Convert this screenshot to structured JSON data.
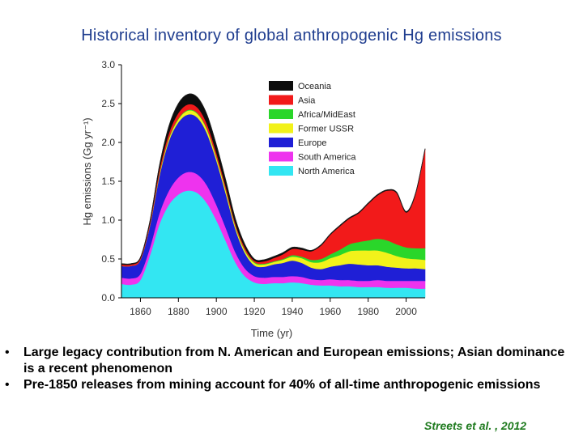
{
  "slide": {
    "title": "Historical inventory of global anthropogenic Hg emissions",
    "bullets": [
      " Large legacy contribution from N. American and European emissions; Asian dominance is a recent phenomenon",
      "Pre-1850 releases from mining account for 40% of all-time anthropogenic emissions"
    ],
    "bullet_symbol": "•",
    "citation": "Streets et al. , 2012"
  },
  "chart_data": {
    "type": "area",
    "stacked": true,
    "title": "",
    "xlabel": "Time (yr)",
    "ylabel": "Hg emissions (Gg yr⁻¹)",
    "xlim": [
      1850,
      2010
    ],
    "ylim": [
      0,
      3.0
    ],
    "x_ticks": [
      1860,
      1880,
      1900,
      1920,
      1940,
      1960,
      1980,
      2000
    ],
    "y_ticks": [
      "0.0",
      "0.5",
      "1.0",
      "1.5",
      "2.0",
      "2.5",
      "3.0"
    ],
    "grid": false,
    "legend_position": "top-right",
    "x": [
      1850,
      1855,
      1860,
      1865,
      1870,
      1875,
      1880,
      1885,
      1890,
      1895,
      1900,
      1905,
      1910,
      1915,
      1920,
      1925,
      1930,
      1935,
      1940,
      1945,
      1950,
      1955,
      1960,
      1965,
      1970,
      1975,
      1980,
      1985,
      1990,
      1995,
      2000,
      2005,
      2010
    ],
    "series": [
      {
        "name": "North America",
        "color": "#33e6f2",
        "values": [
          0.18,
          0.17,
          0.23,
          0.55,
          0.95,
          1.2,
          1.33,
          1.38,
          1.35,
          1.22,
          1.0,
          0.73,
          0.46,
          0.28,
          0.2,
          0.18,
          0.19,
          0.19,
          0.2,
          0.19,
          0.17,
          0.16,
          0.16,
          0.15,
          0.15,
          0.14,
          0.14,
          0.14,
          0.13,
          0.13,
          0.13,
          0.12,
          0.12
        ]
      },
      {
        "name": "South America",
        "color": "#ee33ee",
        "values": [
          0.08,
          0.08,
          0.08,
          0.1,
          0.14,
          0.18,
          0.22,
          0.24,
          0.24,
          0.23,
          0.2,
          0.17,
          0.13,
          0.1,
          0.08,
          0.08,
          0.08,
          0.08,
          0.08,
          0.08,
          0.07,
          0.07,
          0.08,
          0.08,
          0.08,
          0.08,
          0.08,
          0.09,
          0.09,
          0.09,
          0.09,
          0.1,
          0.1
        ]
      },
      {
        "name": "Europe",
        "color": "#1f1fd6",
        "values": [
          0.15,
          0.16,
          0.18,
          0.28,
          0.48,
          0.64,
          0.71,
          0.74,
          0.73,
          0.67,
          0.57,
          0.44,
          0.3,
          0.2,
          0.14,
          0.14,
          0.16,
          0.18,
          0.2,
          0.18,
          0.15,
          0.14,
          0.16,
          0.19,
          0.21,
          0.21,
          0.2,
          0.19,
          0.18,
          0.17,
          0.16,
          0.16,
          0.15
        ]
      },
      {
        "name": "Former USSR",
        "color": "#f2f21a",
        "values": [
          0.0,
          0.0,
          0.0,
          0.01,
          0.02,
          0.03,
          0.04,
          0.05,
          0.05,
          0.05,
          0.04,
          0.04,
          0.03,
          0.03,
          0.03,
          0.03,
          0.03,
          0.04,
          0.05,
          0.06,
          0.07,
          0.09,
          0.11,
          0.13,
          0.16,
          0.18,
          0.19,
          0.19,
          0.18,
          0.15,
          0.13,
          0.12,
          0.12
        ]
      },
      {
        "name": "Africa/Mid East",
        "color": "#2ad62a",
        "values": [
          0.0,
          0.0,
          0.0,
          0.0,
          0.01,
          0.01,
          0.01,
          0.01,
          0.01,
          0.01,
          0.01,
          0.01,
          0.01,
          0.01,
          0.01,
          0.01,
          0.01,
          0.01,
          0.02,
          0.02,
          0.03,
          0.04,
          0.05,
          0.07,
          0.09,
          0.11,
          0.13,
          0.15,
          0.16,
          0.15,
          0.14,
          0.14,
          0.15
        ]
      },
      {
        "name": "Asia",
        "color": "#f21a1a",
        "values": [
          0.02,
          0.02,
          0.02,
          0.03,
          0.05,
          0.06,
          0.07,
          0.07,
          0.07,
          0.06,
          0.05,
          0.04,
          0.03,
          0.03,
          0.02,
          0.03,
          0.04,
          0.06,
          0.08,
          0.09,
          0.11,
          0.17,
          0.25,
          0.3,
          0.33,
          0.37,
          0.47,
          0.56,
          0.64,
          0.66,
          0.45,
          0.7,
          1.27
        ]
      },
      {
        "name": "Oceania",
        "color": "#0d0d0d",
        "values": [
          0.01,
          0.01,
          0.01,
          0.02,
          0.05,
          0.09,
          0.12,
          0.13,
          0.13,
          0.12,
          0.1,
          0.08,
          0.06,
          0.04,
          0.02,
          0.02,
          0.02,
          0.02,
          0.02,
          0.02,
          0.01,
          0.01,
          0.01,
          0.01,
          0.01,
          0.01,
          0.01,
          0.01,
          0.01,
          0.01,
          0.01,
          0.01,
          0.01
        ]
      }
    ],
    "legend_order": [
      "Oceania",
      "Asia",
      "Africa/Mid East",
      "Former USSR",
      "Europe",
      "South America",
      "North America"
    ],
    "legend_labels": [
      "Oceania",
      "Asia",
      "Africa/MidEast",
      "Former USSR",
      "Europe",
      "South America",
      "North America"
    ]
  }
}
